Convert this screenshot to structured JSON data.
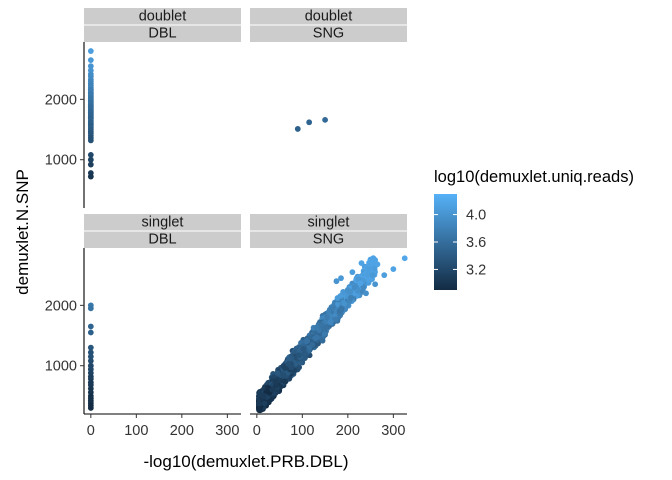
{
  "chart_data": {
    "type": "scatter",
    "xlabel": "-log10(demuxlet.PRB.DBL)",
    "ylabel": "demuxlet.N.SNP",
    "xlim": [
      -15,
      330
    ],
    "ylim": [
      200,
      2950
    ],
    "x_ticks": [
      0,
      100,
      200,
      300
    ],
    "y_ticks": [
      1000,
      2000
    ],
    "grid": false,
    "legend": {
      "title": "log10(demuxlet.uniq.reads)",
      "placement": "right",
      "range": [
        2.9,
        4.3
      ],
      "ticks": [
        3.2,
        3.6,
        4.0
      ],
      "colors": [
        "#132B43",
        "#56B1F7"
      ]
    },
    "facets": [
      {
        "row_label": "doublet",
        "col_label": "DBL",
        "points": [
          [
            0,
            2800,
            4.1
          ],
          [
            0,
            2650,
            4.05
          ],
          [
            0,
            2550,
            4.0
          ],
          [
            0,
            2480,
            4.0
          ],
          [
            0,
            2420,
            3.95
          ],
          [
            0,
            2380,
            3.9
          ],
          [
            0,
            2330,
            3.9
          ],
          [
            0,
            2300,
            3.85
          ],
          [
            0,
            2260,
            3.85
          ],
          [
            0,
            2230,
            3.8
          ],
          [
            0,
            2200,
            3.85
          ],
          [
            0,
            2170,
            3.8
          ],
          [
            0,
            2150,
            3.75
          ],
          [
            0,
            2120,
            3.8
          ],
          [
            0,
            2100,
            3.75
          ],
          [
            0,
            2080,
            3.7
          ],
          [
            0,
            2060,
            3.75
          ],
          [
            0,
            2040,
            3.7
          ],
          [
            0,
            2020,
            3.7
          ],
          [
            0,
            2000,
            3.65
          ],
          [
            0,
            1980,
            3.7
          ],
          [
            0,
            1960,
            3.65
          ],
          [
            0,
            1940,
            3.6
          ],
          [
            0,
            1920,
            3.65
          ],
          [
            0,
            1900,
            3.6
          ],
          [
            0,
            1880,
            3.6
          ],
          [
            0,
            1860,
            3.55
          ],
          [
            0,
            1840,
            3.6
          ],
          [
            0,
            1820,
            3.55
          ],
          [
            0,
            1800,
            3.55
          ],
          [
            0,
            1780,
            3.5
          ],
          [
            0,
            1760,
            3.55
          ],
          [
            0,
            1740,
            3.5
          ],
          [
            0,
            1720,
            3.5
          ],
          [
            0,
            1700,
            3.5
          ],
          [
            0,
            1680,
            3.45
          ],
          [
            0,
            1650,
            3.5
          ],
          [
            0,
            1620,
            3.45
          ],
          [
            0,
            1590,
            3.45
          ],
          [
            0,
            1560,
            3.4
          ],
          [
            0,
            1530,
            3.45
          ],
          [
            0,
            1500,
            3.4
          ],
          [
            0,
            1470,
            3.4
          ],
          [
            0,
            1440,
            3.35
          ],
          [
            0,
            1400,
            3.35
          ],
          [
            0,
            1360,
            3.3
          ],
          [
            0,
            1320,
            3.3
          ],
          [
            0,
            1080,
            3.2
          ],
          [
            0,
            1000,
            3.15
          ],
          [
            0,
            920,
            3.1
          ],
          [
            0,
            780,
            3.05
          ],
          [
            0,
            720,
            3.0
          ]
        ]
      },
      {
        "row_label": "doublet",
        "col_label": "SNG",
        "points": [
          [
            90,
            1510,
            3.45
          ],
          [
            115,
            1620,
            3.5
          ],
          [
            150,
            1660,
            3.55
          ]
        ]
      },
      {
        "row_label": "singlet",
        "col_label": "DBL",
        "points": [
          [
            0,
            2000,
            3.7
          ],
          [
            0,
            1950,
            3.65
          ],
          [
            0,
            1650,
            3.5
          ],
          [
            0,
            1550,
            3.45
          ],
          [
            0,
            1300,
            3.35
          ],
          [
            0,
            1220,
            3.3
          ],
          [
            0,
            1150,
            3.3
          ],
          [
            0,
            1080,
            3.25
          ],
          [
            0,
            1000,
            3.2
          ],
          [
            0,
            940,
            3.2
          ],
          [
            0,
            880,
            3.15
          ],
          [
            0,
            820,
            3.1
          ],
          [
            0,
            780,
            3.1
          ],
          [
            0,
            720,
            3.05
          ],
          [
            0,
            680,
            3.05
          ],
          [
            0,
            620,
            3.0
          ],
          [
            0,
            560,
            3.0
          ],
          [
            0,
            500,
            2.95
          ],
          [
            0,
            460,
            2.95
          ],
          [
            0,
            420,
            2.95
          ],
          [
            0,
            380,
            2.95
          ],
          [
            0,
            340,
            2.9
          ],
          [
            0,
            300,
            2.9
          ]
        ]
      },
      {
        "row_label": "singlet",
        "col_label": "SNG",
        "cloud": {
          "n": 2600,
          "x_range": [
            5,
            260
          ],
          "slope": 9.0,
          "intercept": 330,
          "spread": 230,
          "color_min": 2.9,
          "color_max": 4.15
        },
        "points": [
          [
            210,
            2550,
            4.1
          ],
          [
            230,
            2700,
            4.15
          ],
          [
            245,
            2600,
            4.1
          ],
          [
            255,
            2500,
            4.05
          ],
          [
            265,
            2680,
            4.15
          ],
          [
            260,
            2350,
            4.0
          ],
          [
            280,
            2500,
            4.1
          ],
          [
            300,
            2600,
            4.15
          ],
          [
            325,
            2780,
            4.2
          ],
          [
            240,
            2200,
            3.95
          ],
          [
            200,
            2250,
            3.95
          ],
          [
            185,
            2450,
            4.05
          ],
          [
            175,
            2400,
            4.0
          ]
        ]
      }
    ]
  }
}
